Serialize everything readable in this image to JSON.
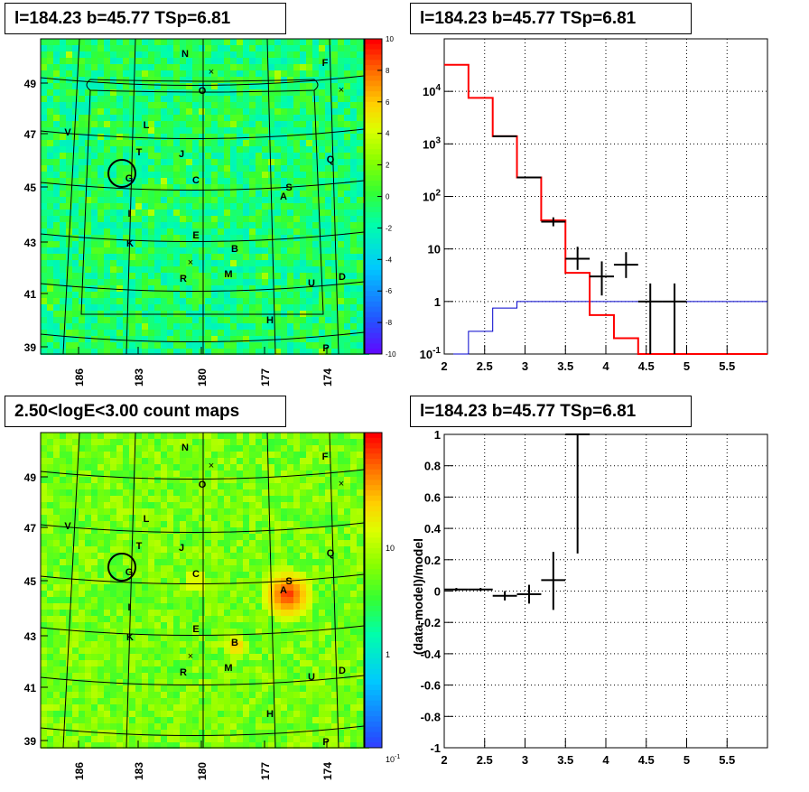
{
  "panels": {
    "tl": {
      "title": "l=184.23 b=45.77 TSp=6.81"
    },
    "tr": {
      "title": "l=184.23 b=45.77 TSp=6.81"
    },
    "bl": {
      "title": "2.50<logE<3.00 count maps"
    },
    "br": {
      "title": "l=184.23 b=45.77 TSp=6.81"
    }
  },
  "colors": {
    "model": "#ff0000",
    "bkg": "#0000cc",
    "data": "#000000"
  },
  "chart_data": [
    {
      "id": "residual-map",
      "type": "heatmap",
      "title": "l=184.23 b=45.77 TSp=6.81",
      "x_ticks": [
        "186",
        "183",
        "180",
        "177",
        "174"
      ],
      "y_ticks": [
        "49",
        "47",
        "45",
        "43",
        "41",
        "39"
      ],
      "colorbar_ticks": [
        "10",
        "8",
        "6",
        "4",
        "2",
        "0",
        "-2",
        "-4",
        "-6",
        "-8",
        "-10"
      ],
      "zlim": [
        -10,
        10
      ],
      "source_labels": [
        "N",
        "F",
        "O",
        "V",
        "L",
        "T",
        "J",
        "Q",
        "G",
        "C",
        "S",
        "A",
        "I",
        "E",
        "K",
        "B",
        "R",
        "M",
        "U",
        "D",
        "H",
        "P"
      ]
    },
    {
      "id": "spectrum",
      "type": "line",
      "title": "l=184.23 b=45.77 TSp=6.81",
      "xlim": [
        2,
        6
      ],
      "ylim_log": [
        0.1,
        100000
      ],
      "y_scale": "log",
      "x_ticks": [
        "2",
        "2.5",
        "3",
        "3.5",
        "4",
        "4.5",
        "5",
        "5.5"
      ],
      "y_ticks": [
        "10^-1",
        "1",
        "10",
        "10^2",
        "10^3",
        "10^4"
      ],
      "grid": true,
      "model_steps": {
        "edges": [
          2.0,
          2.3,
          2.6,
          2.9,
          3.2,
          3.5,
          3.8,
          4.1,
          4.4,
          6.0
        ],
        "values": [
          32000,
          7500,
          1400,
          230,
          35,
          3.5,
          0.55,
          0.2,
          0.1
        ]
      },
      "bkg_steps": {
        "edges": [
          2.0,
          2.3,
          2.6,
          2.9,
          6.0
        ],
        "values": [
          0.09,
          0.27,
          0.75,
          1.0
        ]
      },
      "data_points": [
        {
          "x": 2.75,
          "y": 1400,
          "xerr": 0.15
        },
        {
          "x": 3.05,
          "y": 230,
          "xerr": 0.15
        },
        {
          "x": 3.35,
          "y": 33,
          "xerr": 0.15,
          "ylo": 27,
          "yhi": 40
        },
        {
          "x": 3.65,
          "y": 6.5,
          "xerr": 0.15,
          "ylo": 4,
          "yhi": 11
        },
        {
          "x": 3.95,
          "y": 3,
          "xerr": 0.15,
          "ylo": 1.3,
          "yhi": 5.8
        },
        {
          "x": 4.25,
          "y": 5,
          "xerr": 0.15,
          "ylo": 2.8,
          "yhi": 8.7
        },
        {
          "x": 4.55,
          "y": 1,
          "xerr": 0.15,
          "ylo": 0.1,
          "yhi": 2.2
        },
        {
          "x": 4.85,
          "y": 1,
          "xerr": 0.15,
          "ylo": 0.1,
          "yhi": 2.2
        }
      ]
    },
    {
      "id": "count-map",
      "type": "heatmap",
      "title": "2.50<logE<3.00 count maps",
      "x_ticks": [
        "186",
        "183",
        "180",
        "177",
        "174"
      ],
      "y_ticks": [
        "49",
        "47",
        "45",
        "43",
        "41",
        "39"
      ],
      "colorbar_ticks": [
        "10",
        "1",
        "10^-1"
      ],
      "z_scale": "log",
      "source_labels": [
        "N",
        "F",
        "O",
        "V",
        "L",
        "T",
        "J",
        "Q",
        "G",
        "C",
        "S",
        "A",
        "I",
        "E",
        "K",
        "B",
        "R",
        "M",
        "U",
        "D",
        "H",
        "P"
      ]
    },
    {
      "id": "residual-ratio",
      "type": "scatter",
      "title": "l=184.23 b=45.77 TSp=6.81",
      "ylabel": "(data-model)/model",
      "xlim": [
        2,
        6
      ],
      "ylim": [
        -1,
        1
      ],
      "x_ticks": [
        "2",
        "2.5",
        "3",
        "3.5",
        "4",
        "4.5",
        "5",
        "5.5"
      ],
      "y_ticks": [
        "1",
        "0.8",
        "0.6",
        "0.4",
        "0.2",
        "0",
        "-0.2",
        "-0.4",
        "-0.6",
        "-0.8",
        "-1"
      ],
      "grid": true,
      "data_points": [
        {
          "x": 2.15,
          "y": 0.01,
          "xerr": 0.15,
          "ylo": 0.0,
          "yhi": 0.02
        },
        {
          "x": 2.45,
          "y": 0.01,
          "xerr": 0.15,
          "ylo": 0.0,
          "yhi": 0.02
        },
        {
          "x": 2.75,
          "y": -0.03,
          "xerr": 0.15,
          "ylo": -0.06,
          "yhi": 0.0
        },
        {
          "x": 3.05,
          "y": -0.02,
          "xerr": 0.15,
          "ylo": -0.08,
          "yhi": 0.04
        },
        {
          "x": 3.35,
          "y": 0.07,
          "xerr": 0.15,
          "ylo": -0.12,
          "yhi": 0.25
        },
        {
          "x": 3.65,
          "y": 1.0,
          "xerr": 0.15,
          "ylo": 0.24,
          "yhi": 1.0
        }
      ]
    }
  ]
}
